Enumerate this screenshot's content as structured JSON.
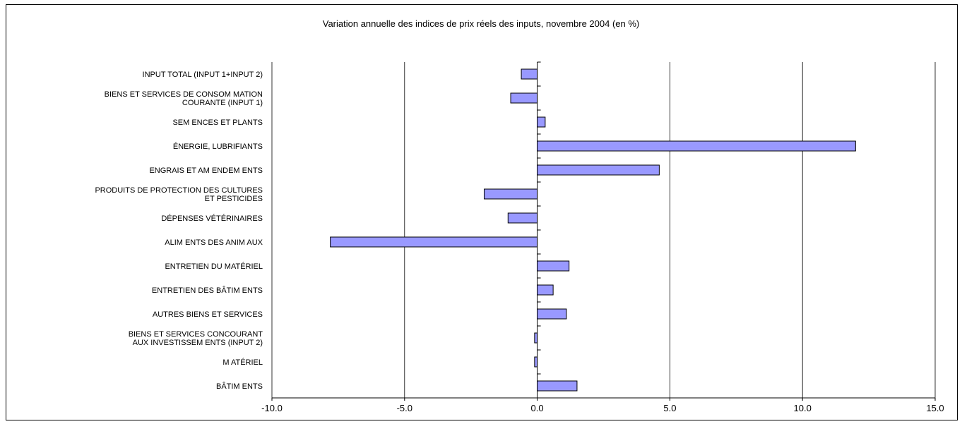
{
  "chart_data": {
    "type": "bar",
    "orientation": "horizontal",
    "title": "Variation annuelle des indices de prix réels des inputs, novembre 2004 (en %)",
    "categories": [
      [
        "INPUT TOTAL  (INPUT 1+INPUT 2)"
      ],
      [
        "BIENS ET SERVICES DE CONSOM MATION",
        "COURANTE (INPUT 1)"
      ],
      [
        "SEM ENCES ET PLANTS"
      ],
      [
        "ÉNERGIE, LUBRIFIANTS"
      ],
      [
        "ENGRAIS ET AM ENDEM ENTS"
      ],
      [
        "PRODUITS DE PROTECTION DES CULTURES",
        "ET PESTICIDES"
      ],
      [
        "DÉPENSES VÉTÉRINAIRES"
      ],
      [
        "ALIM ENTS DES ANIM AUX"
      ],
      [
        "ENTRETIEN DU MATÉRIEL"
      ],
      [
        "ENTRETIEN DES BÂTIM ENTS"
      ],
      [
        "AUTRES BIENS ET SERVICES"
      ],
      [
        "BIENS ET SERVICES CONCOURANT",
        "AUX INVESTISSEM ENTS (INPUT 2)"
      ],
      [
        "M ATÉRIEL"
      ],
      [
        "BÂTIM ENTS"
      ]
    ],
    "values": [
      -0.6,
      -1.0,
      0.3,
      12.0,
      4.6,
      -2.0,
      -1.1,
      -7.8,
      1.2,
      0.6,
      1.1,
      -0.1,
      -0.1,
      1.5
    ],
    "xlim": [
      -10,
      15
    ],
    "xticks": [
      -10,
      -5,
      0,
      5,
      10,
      15
    ],
    "xtick_labels": [
      "-10.0",
      "-5.0",
      "0.0",
      "5.0",
      "10.0",
      "15.0"
    ],
    "grid": "vertical",
    "bar_color": "#9999ff",
    "legend": "none"
  }
}
